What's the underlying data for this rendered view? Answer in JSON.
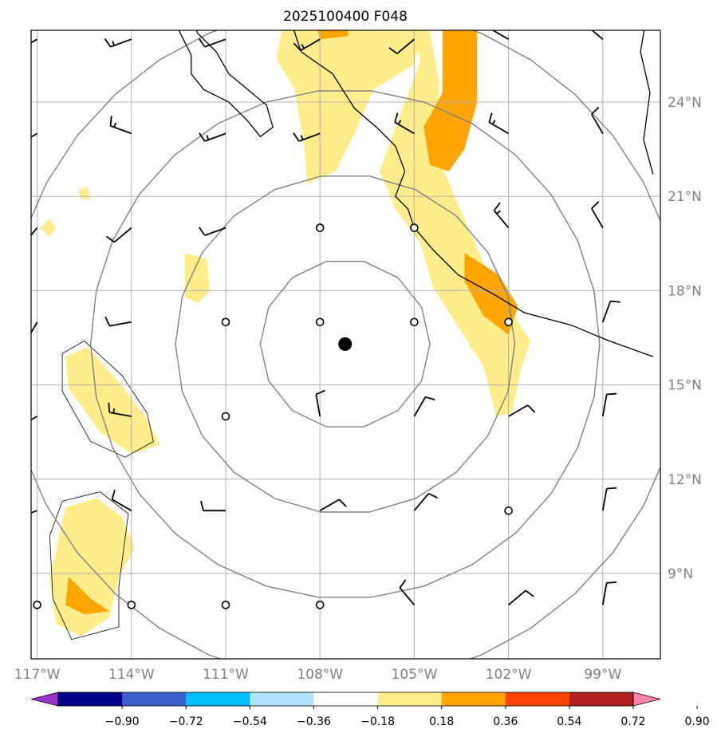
{
  "title": "2025100400 F048",
  "map": {
    "lon_range": [
      -117.2,
      -97.4
    ],
    "lat_range": [
      6.6,
      26.8
    ],
    "center": {
      "lon": -107.2,
      "lat": 16.3
    },
    "range_ring_radii_deg": [
      2.7,
      5.4,
      8.1,
      10.8
    ],
    "station_circles": [
      [
        -108,
        20
      ],
      [
        -105,
        20
      ],
      [
        -111,
        17
      ],
      [
        -108,
        17
      ],
      [
        -105,
        17
      ],
      [
        -102,
        17
      ],
      [
        -111,
        14
      ],
      [
        -102,
        11
      ],
      [
        -117,
        8
      ],
      [
        -114,
        8
      ],
      [
        -111,
        8
      ],
      [
        -108,
        8
      ]
    ],
    "lon_ticks": [
      {
        "value": -117,
        "label": "117°W"
      },
      {
        "value": -114,
        "label": "114°W"
      },
      {
        "value": -111,
        "label": "111°W"
      },
      {
        "value": -108,
        "label": "108°W"
      },
      {
        "value": -105,
        "label": "105°W"
      },
      {
        "value": -102,
        "label": "102°W"
      },
      {
        "value": -99,
        "label": "99°W"
      }
    ],
    "lat_ticks": [
      {
        "value": 24,
        "label": "24°N"
      },
      {
        "value": 21,
        "label": "21°N"
      },
      {
        "value": 18,
        "label": "18°N"
      },
      {
        "value": 15,
        "label": "15°N"
      },
      {
        "value": 12,
        "label": "12°N"
      },
      {
        "value": 9,
        "label": "9°N"
      }
    ],
    "coastline": [
      [
        -112.1,
        26.8
      ],
      [
        -111.9,
        26.2
      ],
      [
        -111.3,
        25.6
      ],
      [
        -110.9,
        24.9
      ],
      [
        -110.3,
        24.4
      ],
      [
        -109.7,
        23.9
      ],
      [
        -109.5,
        23.2
      ],
      [
        -109.9,
        22.9
      ],
      [
        -110.3,
        23.4
      ],
      [
        -110.9,
        24.0
      ],
      [
        -111.7,
        24.4
      ],
      [
        -112.1,
        24.9
      ],
      [
        -112.1,
        25.5
      ],
      [
        -112.5,
        26.3
      ],
      [
        -112.9,
        26.8
      ]
    ],
    "coastline_mainland": [
      [
        -109.0,
        26.8
      ],
      [
        -108.6,
        25.6
      ],
      [
        -107.6,
        24.9
      ],
      [
        -106.9,
        23.8
      ],
      [
        -106.2,
        23.2
      ],
      [
        -105.6,
        22.6
      ],
      [
        -105.3,
        21.8
      ],
      [
        -105.6,
        21.0
      ],
      [
        -105.2,
        20.6
      ],
      [
        -105.0,
        20.0
      ],
      [
        -104.4,
        19.3
      ],
      [
        -103.6,
        18.5
      ],
      [
        -102.5,
        17.9
      ],
      [
        -101.5,
        17.3
      ],
      [
        -100.0,
        16.9
      ],
      [
        -98.8,
        16.4
      ],
      [
        -97.4,
        15.9
      ]
    ],
    "mainland_east": [
      [
        -97.6,
        26.8
      ],
      [
        -97.8,
        25.6
      ],
      [
        -97.5,
        24.3
      ],
      [
        -97.7,
        22.8
      ],
      [
        -97.4,
        21.7
      ]
    ]
  },
  "contours": {
    "light": [
      [
        [
          -109.1,
          26.8
        ],
        [
          -109.4,
          25.4
        ],
        [
          -108.8,
          24.4
        ],
        [
          -108.5,
          22.6
        ],
        [
          -108.4,
          21.4
        ],
        [
          -107.5,
          21.8
        ],
        [
          -106.9,
          23.0
        ],
        [
          -106.3,
          24.4
        ],
        [
          -105.0,
          25.2
        ],
        [
          -104.6,
          26.8
        ]
      ],
      [
        [
          -104.6,
          26.8
        ],
        [
          -104.2,
          24.6
        ],
        [
          -104.3,
          22.4
        ],
        [
          -103.5,
          20.5
        ],
        [
          -102.5,
          18.2
        ],
        [
          -101.3,
          16.4
        ],
        [
          -101.6,
          15.5
        ],
        [
          -101.9,
          14.1
        ],
        [
          -102.4,
          14.0
        ],
        [
          -102.8,
          15.6
        ],
        [
          -103.7,
          17.0
        ],
        [
          -104.4,
          18.1
        ],
        [
          -104.8,
          19.5
        ],
        [
          -105.6,
          20.6
        ],
        [
          -106.1,
          21.8
        ],
        [
          -105.3,
          24.0
        ],
        [
          -104.8,
          25.3
        ],
        [
          -105.2,
          26.8
        ]
      ],
      [
        [
          -116.1,
          15.9
        ],
        [
          -115.4,
          16.2
        ],
        [
          -114.4,
          15.1
        ],
        [
          -113.5,
          13.9
        ],
        [
          -113.1,
          13.1
        ],
        [
          -114.0,
          12.8
        ],
        [
          -115.0,
          13.5
        ],
        [
          -116.0,
          14.9
        ]
      ],
      [
        [
          -116.1,
          11.1
        ],
        [
          -115.1,
          11.4
        ],
        [
          -114.3,
          10.8
        ],
        [
          -113.9,
          9.8
        ],
        [
          -114.4,
          8.9
        ],
        [
          -114.7,
          7.6
        ],
        [
          -115.6,
          7.0
        ],
        [
          -116.4,
          7.4
        ],
        [
          -116.6,
          8.8
        ],
        [
          -116.3,
          10.2
        ]
      ],
      [
        [
          -112.3,
          19.2
        ],
        [
          -111.6,
          19.0
        ],
        [
          -111.5,
          18.0
        ],
        [
          -111.9,
          17.6
        ],
        [
          -112.3,
          17.8
        ]
      ],
      [
        [
          -115.7,
          21.2
        ],
        [
          -115.4,
          21.3
        ],
        [
          -115.3,
          20.9
        ],
        [
          -115.6,
          20.9
        ]
      ],
      [
        [
          -116.6,
          20.3
        ],
        [
          -116.4,
          20.0
        ],
        [
          -116.6,
          19.7
        ],
        [
          -116.9,
          20.0
        ]
      ]
    ],
    "dark": [
      [
        [
          -104.1,
          26.8
        ],
        [
          -103.0,
          26.8
        ],
        [
          -103.0,
          24.0
        ],
        [
          -103.4,
          22.5
        ],
        [
          -103.9,
          21.8
        ],
        [
          -104.5,
          22.0
        ],
        [
          -104.7,
          23.2
        ],
        [
          -104.1,
          24.3
        ]
      ],
      [
        [
          -103.4,
          19.2
        ],
        [
          -102.3,
          18.5
        ],
        [
          -101.7,
          17.5
        ],
        [
          -102.0,
          16.6
        ],
        [
          -102.8,
          17.2
        ],
        [
          -103.4,
          18.3
        ]
      ],
      [
        [
          -108.2,
          26.8
        ],
        [
          -107.2,
          26.8
        ],
        [
          -107.1,
          26.1
        ],
        [
          -108.0,
          26.0
        ]
      ],
      [
        [
          -116.0,
          8.9
        ],
        [
          -115.3,
          8.2
        ],
        [
          -114.7,
          7.8
        ],
        [
          -115.5,
          7.7
        ],
        [
          -116.1,
          8.0
        ]
      ]
    ],
    "outline_loops": [
      [
        [
          -116.2,
          16.0
        ],
        [
          -115.5,
          16.4
        ],
        [
          -114.3,
          15.3
        ],
        [
          -113.5,
          14.1
        ],
        [
          -113.3,
          13.2
        ],
        [
          -114.2,
          12.7
        ],
        [
          -115.3,
          13.2
        ],
        [
          -116.2,
          14.8
        ]
      ],
      [
        [
          -116.2,
          11.3
        ],
        [
          -115.0,
          11.6
        ],
        [
          -114.1,
          10.9
        ],
        [
          -114.4,
          8.6
        ],
        [
          -114.4,
          7.3
        ],
        [
          -115.9,
          6.9
        ],
        [
          -116.5,
          8.2
        ],
        [
          -116.6,
          10.2
        ]
      ]
    ]
  },
  "wind_barbs": [
    {
      "lon": -117,
      "lat": 26,
      "dir": 240,
      "speed": 10
    },
    {
      "lon": -114,
      "lat": 26,
      "dir": 250,
      "speed": 15
    },
    {
      "lon": -111,
      "lat": 26,
      "dir": 250,
      "speed": 10
    },
    {
      "lon": -108,
      "lat": 26,
      "dir": 240,
      "speed": 15
    },
    {
      "lon": -105,
      "lat": 26,
      "dir": 230,
      "speed": 10
    },
    {
      "lon": -102,
      "lat": 26,
      "dir": 300,
      "speed": 10
    },
    {
      "lon": -99,
      "lat": 26,
      "dir": 310,
      "speed": 10
    },
    {
      "lon": -117,
      "lat": 23,
      "dir": 240,
      "speed": 10
    },
    {
      "lon": -114,
      "lat": 23,
      "dir": 290,
      "speed": 15
    },
    {
      "lon": -111,
      "lat": 23,
      "dir": 250,
      "speed": 15
    },
    {
      "lon": -108,
      "lat": 23,
      "dir": 250,
      "speed": 15
    },
    {
      "lon": -105,
      "lat": 23,
      "dir": 300,
      "speed": 15
    },
    {
      "lon": -102,
      "lat": 23,
      "dir": 300,
      "speed": 15
    },
    {
      "lon": -99,
      "lat": 23,
      "dir": 330,
      "speed": 10
    },
    {
      "lon": -117,
      "lat": 20,
      "dir": 220,
      "speed": 10
    },
    {
      "lon": -114,
      "lat": 20,
      "dir": 230,
      "speed": 10
    },
    {
      "lon": -111,
      "lat": 20,
      "dir": 250,
      "speed": 10
    },
    {
      "lon": -102,
      "lat": 20,
      "dir": 320,
      "speed": 15
    },
    {
      "lon": -99,
      "lat": 20,
      "dir": 330,
      "speed": 10
    },
    {
      "lon": -117,
      "lat": 17,
      "dir": 210,
      "speed": 10
    },
    {
      "lon": -114,
      "lat": 17,
      "dir": 260,
      "speed": 10
    },
    {
      "lon": -99,
      "lat": 17,
      "dir": 20,
      "speed": 10
    },
    {
      "lon": -117,
      "lat": 14,
      "dir": 240,
      "speed": 10
    },
    {
      "lon": -114,
      "lat": 14,
      "dir": 280,
      "speed": 15
    },
    {
      "lon": -108,
      "lat": 14,
      "dir": 350,
      "speed": 10
    },
    {
      "lon": -105,
      "lat": 14,
      "dir": 30,
      "speed": 10
    },
    {
      "lon": -102,
      "lat": 14,
      "dir": 60,
      "speed": 10
    },
    {
      "lon": -99,
      "lat": 14,
      "dir": 10,
      "speed": 10
    },
    {
      "lon": -117,
      "lat": 11,
      "dir": 250,
      "speed": 10
    },
    {
      "lon": -114,
      "lat": 11,
      "dir": 300,
      "speed": 10
    },
    {
      "lon": -111,
      "lat": 11,
      "dir": 270,
      "speed": 10
    },
    {
      "lon": -108,
      "lat": 11,
      "dir": 60,
      "speed": 10
    },
    {
      "lon": -105,
      "lat": 11,
      "dir": 40,
      "speed": 10
    },
    {
      "lon": -99,
      "lat": 11,
      "dir": 10,
      "speed": 10
    },
    {
      "lon": -105,
      "lat": 8,
      "dir": 320,
      "speed": 10
    },
    {
      "lon": -102,
      "lat": 8,
      "dir": 50,
      "speed": 10
    },
    {
      "lon": -99,
      "lat": 8,
      "dir": 10,
      "speed": 10
    }
  ],
  "colorbar": {
    "colors": [
      "#9932cc",
      "#00008b",
      "#3a5fcd",
      "#00bfff",
      "#b0e2ff",
      "#ffffff",
      "#ffec8b",
      "#ffa500",
      "#ff4500",
      "#b22222",
      "#ff82ab"
    ],
    "labels": [
      "−0.90",
      "−0.72",
      "−0.54",
      "−0.36",
      "−0.18",
      "0.18",
      "0.36",
      "0.54",
      "0.72",
      "0.90"
    ]
  },
  "style": {
    "light_fill": "#ffec8b",
    "dark_fill": "#ffa500",
    "grid_color": "#b0b0b0",
    "ring_color": "#808080",
    "center_marker": "#000000"
  }
}
